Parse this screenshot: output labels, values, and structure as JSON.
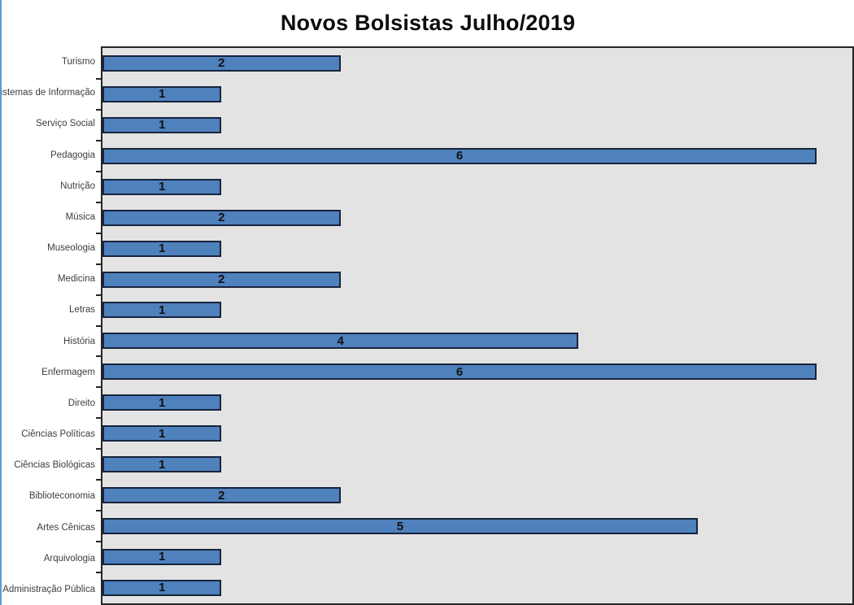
{
  "chart_data": {
    "type": "bar",
    "orientation": "horizontal",
    "title": "Novos Bolsistas Julho/2019",
    "categories": [
      "Turismo",
      "Sistemas de Informação",
      "Serviço Social",
      "Pedagogia",
      "Nutrição",
      "Música",
      "Museologia",
      "Medicina",
      "Letras",
      "História",
      "Enfermagem",
      "Direito",
      "Ciências Políticas",
      "Ciências Biológicas",
      "Biblioteconomia",
      "Artes Cênicas",
      "Arquivologia",
      "Administração Pública"
    ],
    "values": [
      2,
      1,
      1,
      6,
      1,
      2,
      1,
      2,
      1,
      4,
      6,
      1,
      1,
      1,
      2,
      5,
      1,
      1
    ],
    "xlabel": "",
    "ylabel": "",
    "xlim": [
      0,
      6.3
    ],
    "grid": false,
    "legend": false,
    "data_labels": "center",
    "bar_color": "#4f81bd",
    "bar_border_color": "#17243c",
    "plot_bg": "#e3e3e3",
    "plot_border_color": "#262626",
    "frame_accent_color": "#5b9bd5",
    "title_color": "#0d0d0d",
    "label_color": "#3d3d3d",
    "value_label_color": "#111111"
  }
}
